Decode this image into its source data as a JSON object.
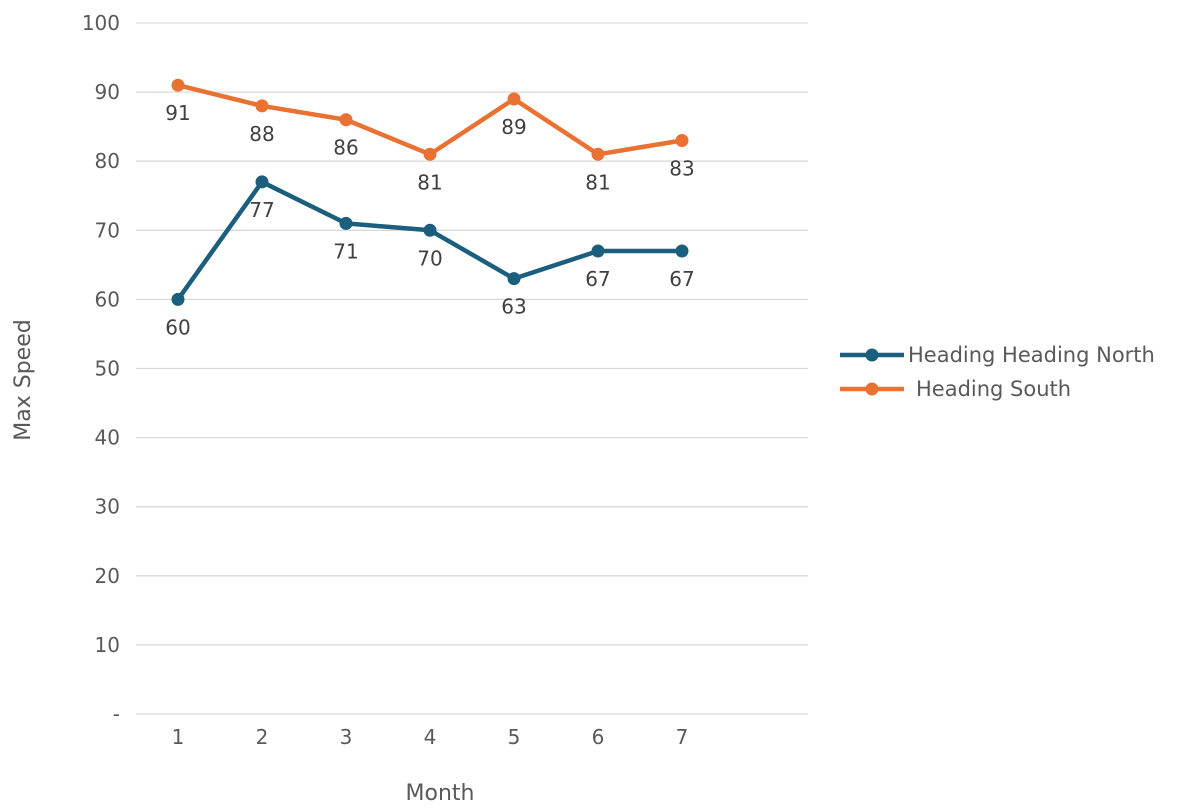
{
  "chart_data": {
    "type": "line",
    "title": "",
    "xlabel": "Month",
    "ylabel": "Max Speed",
    "categories": [
      "1",
      "2",
      "3",
      "4",
      "5",
      "6",
      "7"
    ],
    "ylim": [
      0,
      100
    ],
    "yticks": [
      0,
      10,
      20,
      30,
      40,
      50,
      60,
      70,
      80,
      90,
      100
    ],
    "ytick_labels": [
      "-",
      "10",
      "20",
      "30",
      "40",
      "50",
      "60",
      "70",
      "80",
      "90",
      "100"
    ],
    "grid": true,
    "legend_position": "right",
    "series": [
      {
        "name": "Heading Heading North",
        "color": "#1b5e7e",
        "values": [
          60,
          77,
          71,
          70,
          63,
          67,
          67
        ],
        "labels": [
          "60",
          "77",
          "71",
          "70",
          "63",
          "67",
          "67"
        ]
      },
      {
        "name": "Heading South",
        "color": "#e97132",
        "values": [
          91,
          88,
          86,
          81,
          89,
          81,
          83
        ],
        "labels": [
          "91",
          "88",
          "86",
          "81",
          "89",
          "81",
          "83"
        ]
      }
    ]
  }
}
